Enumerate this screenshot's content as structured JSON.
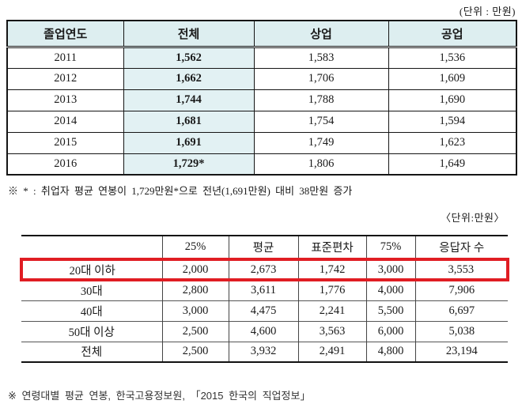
{
  "page": {
    "unit_label_top": "(단위 : 만원)",
    "unit_label_bottom": "〈단위:만원〉",
    "footnote_increase": "※ * : 취업자 평균 연봉이 1,729만원*으로 전년(1,691만원) 대비 38만원 증가",
    "footnote_source": "※ 연령대별 평균 연봉, 한국고용정보원, 「2015 한국의 직업정보」"
  },
  "table1": {
    "headers": [
      "졸업연도",
      "전체",
      "상업",
      "공업"
    ],
    "rows": [
      [
        "2011",
        "1,562",
        "1,583",
        "1,536"
      ],
      [
        "2012",
        "1,662",
        "1,706",
        "1,609"
      ],
      [
        "2013",
        "1,744",
        "1,788",
        "1,690"
      ],
      [
        "2014",
        "1,681",
        "1,754",
        "1,594"
      ],
      [
        "2015",
        "1,691",
        "1,749",
        "1,623"
      ],
      [
        "2016",
        "1,729*",
        "1,806",
        "1,649"
      ]
    ]
  },
  "table2": {
    "headers": [
      "",
      "25%",
      "평균",
      "표준편차",
      "75%",
      "응답자 수"
    ],
    "rows": [
      {
        "label": "20대 이하",
        "values": [
          "2,000",
          "2,673",
          "1,742",
          "3,000",
          "3,553"
        ],
        "highlighted": true
      },
      {
        "label": "30대",
        "values": [
          "2,800",
          "3,611",
          "1,776",
          "4,000",
          "7,906"
        ],
        "highlighted": false
      },
      {
        "label": "40대",
        "values": [
          "3,000",
          "4,475",
          "2,241",
          "5,500",
          "6,697"
        ],
        "highlighted": false
      },
      {
        "label": "50대 이상",
        "values": [
          "2,500",
          "4,600",
          "3,563",
          "6,000",
          "5,038"
        ],
        "highlighted": false
      },
      {
        "label": "전체",
        "values": [
          "2,500",
          "3,932",
          "2,491",
          "4,800",
          "23,194"
        ],
        "highlighted": false
      }
    ]
  },
  "colors": {
    "table_header_bg": "#ddeef0",
    "total_column_bg": "#e2f1f3",
    "highlight_border": "#e01d23"
  }
}
